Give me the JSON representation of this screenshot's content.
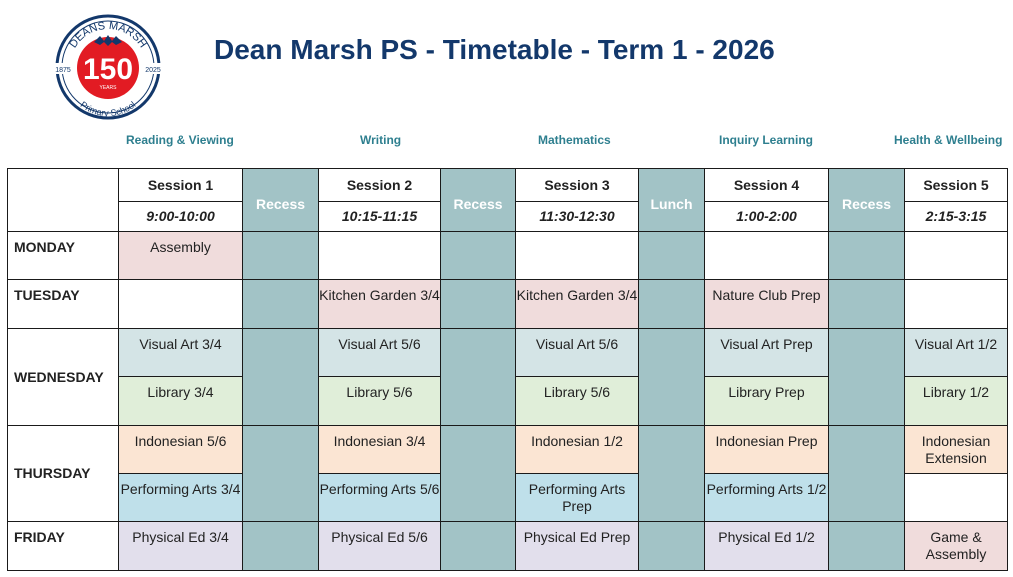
{
  "header": {
    "title": "Dean Marsh PS - Timetable - Term 1 - 2026",
    "logo": {
      "top_text": "DEANS MARSH",
      "bottom_text": "Primary School",
      "number": "150",
      "years": "YEARS",
      "year_left": "1875",
      "year_right": "2025",
      "colors": {
        "ring": "#13386b",
        "center": "#e21b23"
      }
    }
  },
  "subjects": [
    "Reading & Viewing",
    "Writing",
    "Mathematics",
    "Inquiry Learning",
    "Health & Wellbeing"
  ],
  "columns": [
    {
      "label": "Session 1",
      "time": "9:00-10:00"
    },
    {
      "label": "Recess"
    },
    {
      "label": "Session 2",
      "time": "10:15-11:15"
    },
    {
      "label": "Recess"
    },
    {
      "label": "Session 3",
      "time": "11:30-12:30"
    },
    {
      "label": "Lunch"
    },
    {
      "label": "Session 4",
      "time": "1:00-2:00"
    },
    {
      "label": "Recess"
    },
    {
      "label": "Session 5",
      "time": "2:15-3:15"
    }
  ],
  "days": {
    "monday": {
      "label": "MONDAY",
      "s1": "Assembly",
      "s2": "",
      "s3": "",
      "s4": "",
      "s5": ""
    },
    "tuesday": {
      "label": "TUESDAY",
      "s1": "",
      "s2": "Kitchen Garden 3/4",
      "s3": "Kitchen Garden 3/4",
      "s4": "Nature Club Prep",
      "s5": ""
    },
    "wednesday": {
      "label": "WEDNESDAY",
      "a": {
        "s1": "Visual Art 3/4",
        "s2": "Visual Art 5/6",
        "s3": "Visual Art 5/6",
        "s4": "Visual Art Prep",
        "s5": "Visual Art 1/2"
      },
      "b": {
        "s1": "Library 3/4",
        "s2": "Library 5/6",
        "s3": "Library 5/6",
        "s4": "Library Prep",
        "s5": "Library 1/2"
      }
    },
    "thursday": {
      "label": "THURSDAY",
      "a": {
        "s1": "Indonesian 5/6",
        "s2": "Indonesian 3/4",
        "s3": "Indonesian 1/2",
        "s4": "Indonesian Prep",
        "s5": "Indonesian Extension"
      },
      "b": {
        "s1": "Performing Arts 3/4",
        "s2": "Performing Arts 5/6",
        "s3": "Performing Arts Prep",
        "s4": "Performing Arts 1/2",
        "s5": ""
      }
    },
    "friday": {
      "label": "FRIDAY",
      "s1": "Physical Ed 3/4",
      "s2": "Physical Ed 5/6",
      "s3": "Physical Ed Prep",
      "s4": "Physical Ed 1/2",
      "s5": "Game & Assembly"
    }
  }
}
